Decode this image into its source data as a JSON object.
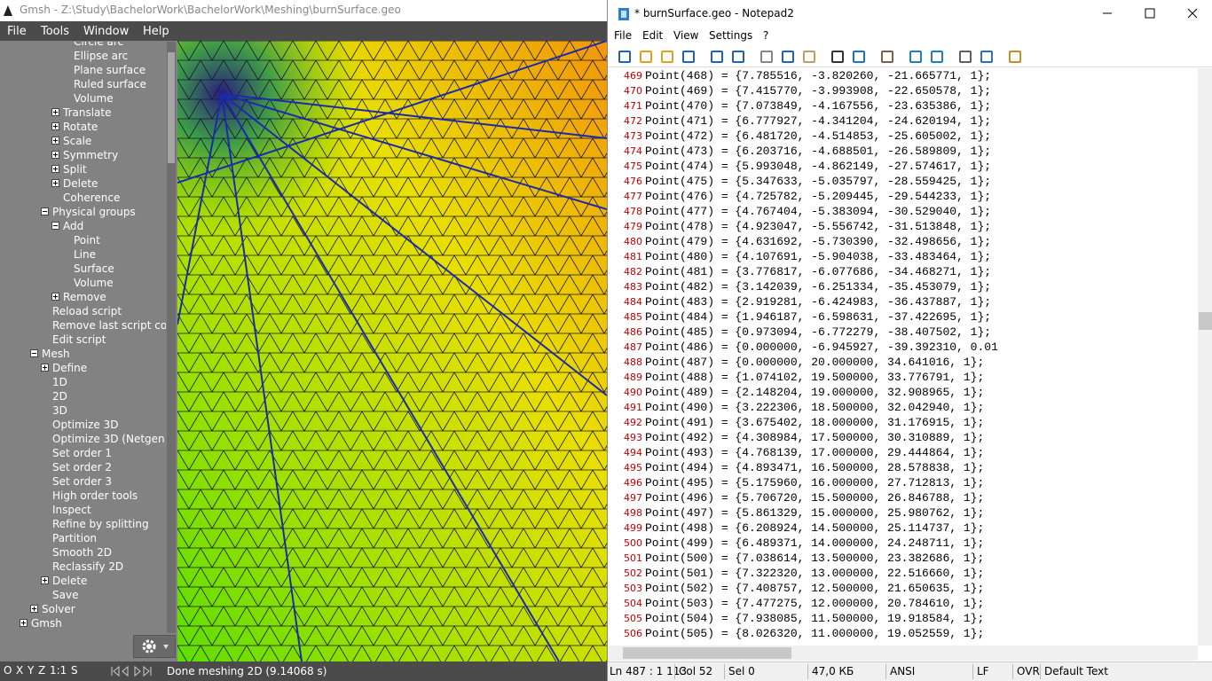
{
  "gmsh": {
    "title": "Gmsh - Z:\\Study\\BachelorWork\\BachelorWork\\Meshing\\burnSurface.geo",
    "menu": [
      "File",
      "Tools",
      "Window",
      "Help"
    ],
    "tree": [
      "Circle arc",
      "Ellipse arc",
      "Plane surface",
      "Ruled surface",
      "Volume",
      "Translate",
      "Rotate",
      "Scale",
      "Symmetry",
      "Split",
      "Delete",
      "Coherence",
      "Physical groups",
      "Add",
      "Point",
      "Line",
      "Surface",
      "Volume",
      "Remove",
      "Reload script",
      "Remove last script command",
      "Edit script",
      "Mesh",
      "Define",
      "1D",
      "2D",
      "3D",
      "Optimize 3D",
      "Optimize 3D (Netgen)",
      "Set order 1",
      "Set order 2",
      "Set order 3",
      "High order tools",
      "Inspect",
      "Refine by splitting",
      "Partition",
      "Smooth 2D",
      "Reclassify 2D",
      "Delete",
      "Save",
      "Solver",
      "Gmsh"
    ],
    "status_buttons": [
      "O",
      "X",
      "Y",
      "Z",
      "1:1",
      "S"
    ],
    "status": "Done meshing 2D (9.14068 s)"
  },
  "notepad": {
    "title": "* burnSurface.geo - Notepad2",
    "menu": [
      "File",
      "Edit",
      "View",
      "Settings",
      "?"
    ],
    "lines": [
      {
        "number": "469",
        "text": "Point(468) = {7.785516, -3.820260, -21.665771, 1};"
      },
      {
        "number": "470",
        "text": "Point(469) = {7.415770, -3.993908, -22.650578, 1};"
      },
      {
        "number": "471",
        "text": "Point(470) = {7.073849, -4.167556, -23.635386, 1};"
      },
      {
        "number": "472",
        "text": "Point(471) = {6.777927, -4.341204, -24.620194, 1};"
      },
      {
        "number": "473",
        "text": "Point(472) = {6.481720, -4.514853, -25.605002, 1};"
      },
      {
        "number": "474",
        "text": "Point(473) = {6.203716, -4.688501, -26.589809, 1};"
      },
      {
        "number": "475",
        "text": "Point(474) = {5.993048, -4.862149, -27.574617, 1};"
      },
      {
        "number": "476",
        "text": "Point(475) = {5.347633, -5.035797, -28.559425, 1};"
      },
      {
        "number": "477",
        "text": "Point(476) = {4.725782, -5.209445, -29.544233, 1};"
      },
      {
        "number": "478",
        "text": "Point(477) = {4.767404, -5.383094, -30.529040, 1};"
      },
      {
        "number": "479",
        "text": "Point(478) = {4.923047, -5.556742, -31.513848, 1};"
      },
      {
        "number": "480",
        "text": "Point(479) = {4.631692, -5.730390, -32.498656, 1};"
      },
      {
        "number": "481",
        "text": "Point(480) = {4.107691, -5.904038, -33.483464, 1};"
      },
      {
        "number": "482",
        "text": "Point(481) = {3.776817, -6.077686, -34.468271, 1};"
      },
      {
        "number": "483",
        "text": "Point(482) = {3.142039, -6.251334, -35.453079, 1};"
      },
      {
        "number": "484",
        "text": "Point(483) = {2.919281, -6.424983, -36.437887, 1};"
      },
      {
        "number": "485",
        "text": "Point(484) = {1.946187, -6.598631, -37.422695, 1};"
      },
      {
        "number": "486",
        "text": "Point(485) = {0.973094, -6.772279, -38.407502, 1};"
      },
      {
        "number": "487",
        "text": "Point(486) = {0.000000, -6.945927, -39.392310, 0.01"
      },
      {
        "number": "488",
        "text": "Point(487) = {0.000000, 20.000000, 34.641016, 1};"
      },
      {
        "number": "489",
        "text": "Point(488) = {1.074102, 19.500000, 33.776791, 1};"
      },
      {
        "number": "490",
        "text": "Point(489) = {2.148204, 19.000000, 32.908965, 1};"
      },
      {
        "number": "491",
        "text": "Point(490) = {3.222306, 18.500000, 32.042940, 1};"
      },
      {
        "number": "492",
        "text": "Point(491) = {3.675402, 18.000000, 31.176915, 1};"
      },
      {
        "number": "493",
        "text": "Point(492) = {4.308984, 17.500000, 30.310889, 1};"
      },
      {
        "number": "494",
        "text": "Point(493) = {4.768139, 17.000000, 29.444864, 1};"
      },
      {
        "number": "495",
        "text": "Point(494) = {4.893471, 16.500000, 28.578838, 1};"
      },
      {
        "number": "496",
        "text": "Point(495) = {5.175960, 16.000000, 27.712813, 1};"
      },
      {
        "number": "497",
        "text": "Point(496) = {5.706720, 15.500000, 26.846788, 1};"
      },
      {
        "number": "498",
        "text": "Point(497) = {5.861329, 15.000000, 25.980762, 1};"
      },
      {
        "number": "499",
        "text": "Point(498) = {6.208924, 14.500000, 25.114737, 1};"
      },
      {
        "number": "500",
        "text": "Point(499) = {6.489371, 14.000000, 24.248711, 1};"
      },
      {
        "number": "501",
        "text": "Point(500) = {7.038614, 13.500000, 23.382686, 1};"
      },
      {
        "number": "502",
        "text": "Point(501) = {7.322320, 13.000000, 22.516660, 1};"
      },
      {
        "number": "503",
        "text": "Point(502) = {7.408757, 12.500000, 21.650635, 1};"
      },
      {
        "number": "504",
        "text": "Point(503) = {7.477275, 12.000000, 20.784610, 1};"
      },
      {
        "number": "505",
        "text": "Point(504) = {7.938085, 11.500000, 19.918584, 1};"
      },
      {
        "number": "506",
        "text": "Point(505) = {8.026320, 11.000000, 19.052559, 1};"
      }
    ],
    "status": [
      "Ln 487 : 1 113",
      "Col 52",
      "Sel 0",
      "47,0 КБ",
      "ANSI",
      "LF",
      "OVR",
      "Default Text"
    ]
  }
}
